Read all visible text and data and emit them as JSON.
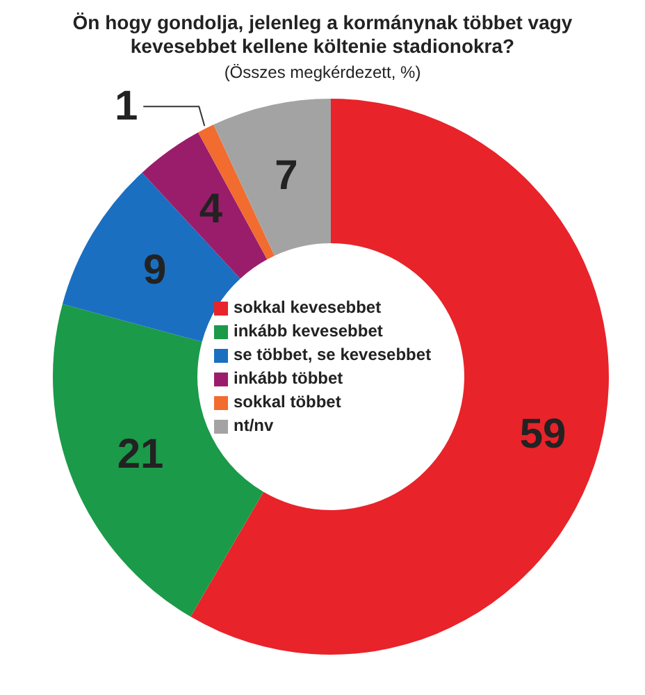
{
  "chart_data": {
    "type": "donut",
    "title": "Ön hogy gondolja, jelenleg a kormánynak többet vagy kevesebbet kellene költenie stadionokra?",
    "subtitle": "(Összes megkérdezett, %)",
    "categories": [
      "sokkal kevesebbet",
      "inkább kevesebbet",
      "se többet, se kevesebbet",
      "inkább többet",
      "sokkal többet",
      "nt/nv"
    ],
    "values": [
      59,
      21,
      9,
      4,
      1,
      7
    ],
    "colors": [
      "#e8232a",
      "#1b9a49",
      "#1a6fc1",
      "#9a1d6c",
      "#f26b2f",
      "#a3a3a3"
    ],
    "data_labels": true,
    "legend": "center"
  }
}
